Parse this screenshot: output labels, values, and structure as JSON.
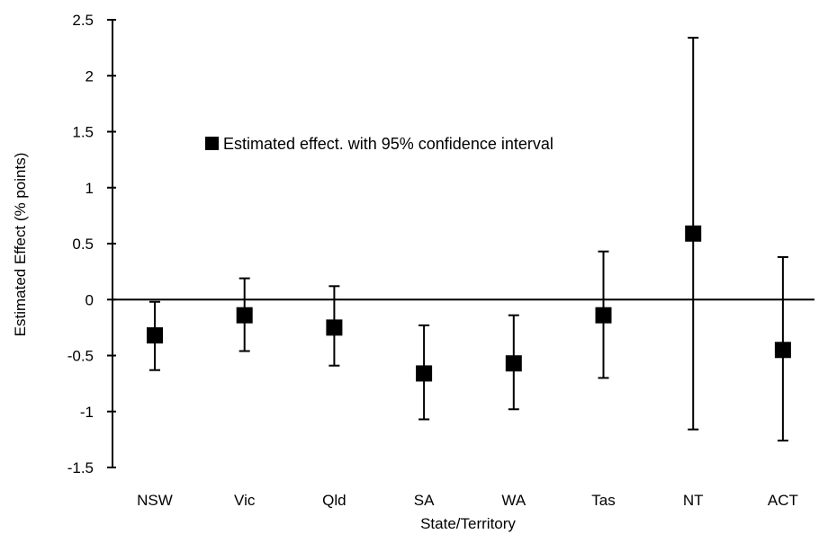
{
  "chart_data": {
    "type": "scatter",
    "title": "",
    "xlabel": "State/Territory",
    "ylabel": "Estimated Effect (% points)",
    "ylim": [
      -1.5,
      2.5
    ],
    "yticks": [
      2.5,
      2,
      1.5,
      1,
      0.5,
      0,
      -0.5,
      -1,
      -1.5
    ],
    "ytick_labels": [
      "2.5",
      "2",
      "1.5",
      "1",
      "0.5",
      "0",
      "-0.5",
      "-1",
      "-1.5"
    ],
    "categories": [
      "NSW",
      "Vic",
      "Qld",
      "SA",
      "WA",
      "Tas",
      "NT",
      "ACT"
    ],
    "series": [
      {
        "name": "Estimated effect. with 95% confidence interval",
        "values": [
          -0.32,
          -0.14,
          -0.25,
          -0.66,
          -0.57,
          -0.14,
          0.59,
          -0.45
        ],
        "ci_low": [
          -0.63,
          -0.46,
          -0.59,
          -1.07,
          -0.98,
          -0.7,
          -1.16,
          -1.26
        ],
        "ci_high": [
          -0.02,
          0.19,
          0.12,
          -0.23,
          -0.14,
          0.43,
          2.34,
          0.38
        ]
      }
    ],
    "legend": {
      "position": "upper-left-inside",
      "marker": "square"
    },
    "grid": false,
    "zero_line": true,
    "colors": {
      "marker": "#000000",
      "lines": "#000000",
      "background": "#ffffff"
    }
  }
}
